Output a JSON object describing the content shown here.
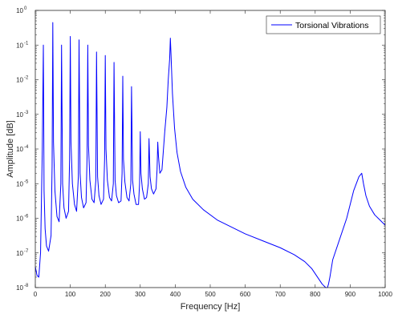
{
  "chart_data": {
    "type": "line",
    "xlabel": "Frequency [Hz]",
    "ylabel": "Amplitude [dB]",
    "xlim": [
      0,
      1000
    ],
    "ylim_exponent": [
      -8,
      0
    ],
    "y_scale": "log",
    "x_ticks": [
      "0",
      "100",
      "200",
      "300",
      "400",
      "500",
      "600",
      "700",
      "800",
      "900",
      "1000"
    ],
    "y_ticks": [
      {
        "base": "10",
        "exp": "-8"
      },
      {
        "base": "10",
        "exp": "-7"
      },
      {
        "base": "10",
        "exp": "-6"
      },
      {
        "base": "10",
        "exp": "-5"
      },
      {
        "base": "10",
        "exp": "-4"
      },
      {
        "base": "10",
        "exp": "-3"
      },
      {
        "base": "10",
        "exp": "-2"
      },
      {
        "base": "10",
        "exp": "-1"
      },
      {
        "base": "10",
        "exp": "0"
      }
    ],
    "grid": false,
    "legend_position": "top-right",
    "series": [
      {
        "name": "Torsional Vibrations",
        "color": "#0000ff",
        "x": [
          0,
          5,
          10,
          15,
          20,
          23,
          25,
          28,
          32,
          38,
          45,
          48,
          50,
          52,
          56,
          62,
          68,
          73,
          75,
          78,
          82,
          88,
          95,
          98,
          100,
          102,
          106,
          112,
          118,
          123,
          125,
          128,
          132,
          138,
          145,
          148,
          150,
          152,
          156,
          162,
          168,
          173,
          175,
          178,
          182,
          188,
          195,
          198,
          200,
          202,
          206,
          212,
          218,
          223,
          225,
          228,
          232,
          238,
          245,
          248,
          250,
          252,
          256,
          262,
          268,
          273,
          275,
          278,
          282,
          288,
          295,
          298,
          300,
          302,
          306,
          312,
          318,
          323,
          325,
          328,
          332,
          338,
          345,
          348,
          350,
          352,
          356,
          362,
          370,
          376,
          380,
          384,
          386,
          388,
          392,
          398,
          405,
          415,
          430,
          450,
          480,
          520,
          560,
          600,
          650,
          700,
          740,
          770,
          790,
          810,
          820,
          830,
          835,
          838,
          842,
          850,
          870,
          890,
          910,
          925,
          933,
          938,
          945,
          955,
          970,
          985,
          1000
        ],
        "y_log10": [
          -7.4,
          -7.65,
          -7.7,
          -7.0,
          -4.0,
          -1.0,
          -5.2,
          -6.3,
          -6.8,
          -6.95,
          -6.5,
          -4.5,
          -0.35,
          -3.8,
          -5.2,
          -5.95,
          -6.1,
          -5.0,
          -1.0,
          -5.0,
          -5.7,
          -6.0,
          -5.8,
          -4.3,
          -0.75,
          -3.8,
          -5.0,
          -5.6,
          -5.8,
          -4.8,
          -0.85,
          -4.7,
          -5.4,
          -5.7,
          -5.55,
          -4.2,
          -1.0,
          -3.9,
          -4.9,
          -5.45,
          -5.55,
          -4.9,
          -1.2,
          -4.8,
          -5.35,
          -5.6,
          -5.45,
          -4.3,
          -1.3,
          -4.0,
          -4.9,
          -5.4,
          -5.5,
          -5.0,
          -1.5,
          -4.9,
          -5.35,
          -5.55,
          -5.5,
          -4.7,
          -1.9,
          -4.3,
          -4.95,
          -5.4,
          -5.5,
          -5.0,
          -2.2,
          -4.9,
          -5.3,
          -5.6,
          -5.6,
          -5.0,
          -3.5,
          -4.7,
          -5.15,
          -5.45,
          -5.4,
          -5.0,
          -3.7,
          -4.8,
          -5.15,
          -5.3,
          -5.15,
          -4.6,
          -3.8,
          -4.2,
          -4.7,
          -4.6,
          -3.5,
          -2.8,
          -2.0,
          -1.4,
          -0.8,
          -1.3,
          -2.4,
          -3.4,
          -4.1,
          -4.65,
          -5.1,
          -5.45,
          -5.75,
          -6.05,
          -6.25,
          -6.45,
          -6.65,
          -6.85,
          -7.05,
          -7.25,
          -7.45,
          -7.75,
          -7.9,
          -8.0,
          -8.0,
          -7.9,
          -7.7,
          -7.2,
          -6.6,
          -6.0,
          -5.2,
          -4.8,
          -4.7,
          -5.0,
          -5.35,
          -5.65,
          -5.9,
          -6.05,
          -6.2
        ]
      }
    ]
  }
}
